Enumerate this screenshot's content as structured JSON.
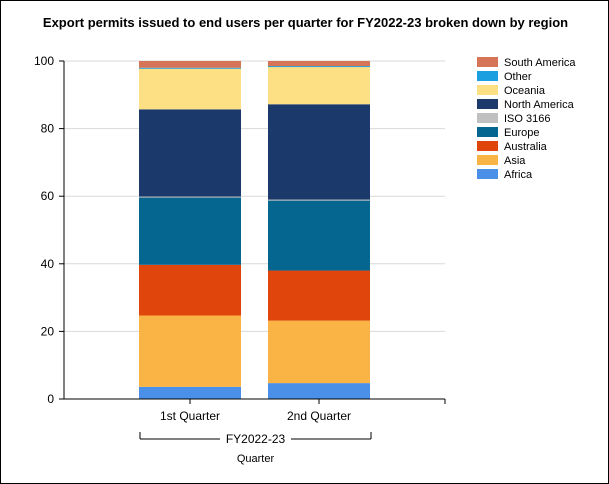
{
  "chart_data": {
    "type": "bar",
    "stacked": true,
    "title": "Export permits issued to end users per quarter for FY2022-23 broken down by region",
    "xlabel": "Quarter",
    "ylabel": "",
    "group_label": "FY2022-23",
    "categories": [
      "1st Quarter",
      "2nd Quarter"
    ],
    "ylim": [
      0,
      100
    ],
    "yticks": [
      0,
      20,
      40,
      60,
      80,
      100
    ],
    "grid": true,
    "legend_position": "top-right",
    "series": [
      {
        "name": "Africa",
        "color": "#4a8fe8",
        "values": [
          3.6,
          4.7
        ]
      },
      {
        "name": "Asia",
        "color": "#fab446",
        "values": [
          21.1,
          18.5
        ]
      },
      {
        "name": "Australia",
        "color": "#e0450c",
        "values": [
          15.0,
          14.8
        ]
      },
      {
        "name": "Europe",
        "color": "#05668f",
        "values": [
          19.9,
          20.7
        ]
      },
      {
        "name": "ISO 3166",
        "color": "#c0c0c0",
        "values": [
          0.3,
          0.3
        ]
      },
      {
        "name": "North America",
        "color": "#1b3a6b",
        "values": [
          25.8,
          28.2
        ]
      },
      {
        "name": "Oceania",
        "color": "#fce083",
        "values": [
          12.0,
          11.0
        ]
      },
      {
        "name": "Other",
        "color": "#1aa0e0",
        "values": [
          0.3,
          0.3
        ]
      },
      {
        "name": "South America",
        "color": "#d67458",
        "values": [
          2.0,
          1.5
        ]
      }
    ]
  }
}
